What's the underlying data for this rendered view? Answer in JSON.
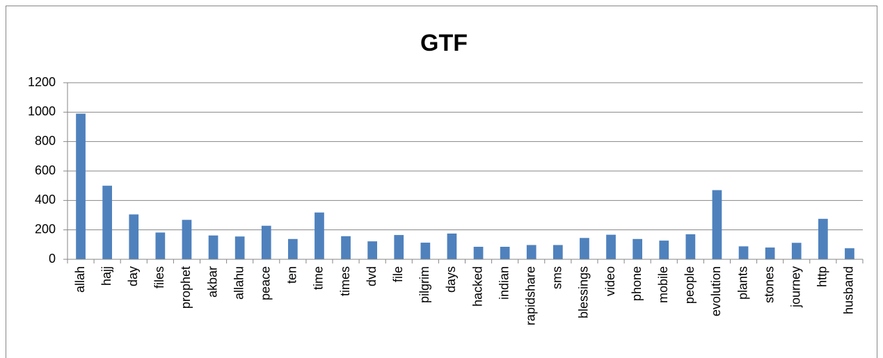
{
  "chart_data": {
    "type": "bar",
    "title": "GTF",
    "categories": [
      "allah",
      "hajj",
      "day",
      "files",
      "prophet",
      "akbar",
      "allahu",
      "peace",
      "ten",
      "time",
      "times",
      "dvd",
      "file",
      "pilgrim",
      "days",
      "hacked",
      "indian",
      "rapidshare",
      "sms",
      "blessings",
      "video",
      "phone",
      "mobile",
      "people",
      "evolution",
      "plants",
      "stones",
      "journey",
      "http",
      "husband"
    ],
    "values": [
      990,
      500,
      305,
      182,
      268,
      162,
      155,
      228,
      138,
      318,
      157,
      122,
      165,
      113,
      175,
      85,
      85,
      97,
      97,
      145,
      167,
      138,
      127,
      170,
      470,
      88,
      80,
      112,
      275,
      75
    ],
    "color": "#4f81bd",
    "ylim": [
      0,
      1200
    ],
    "yticks": [
      0,
      200,
      400,
      600,
      800,
      1000,
      1200
    ],
    "grid": true
  }
}
